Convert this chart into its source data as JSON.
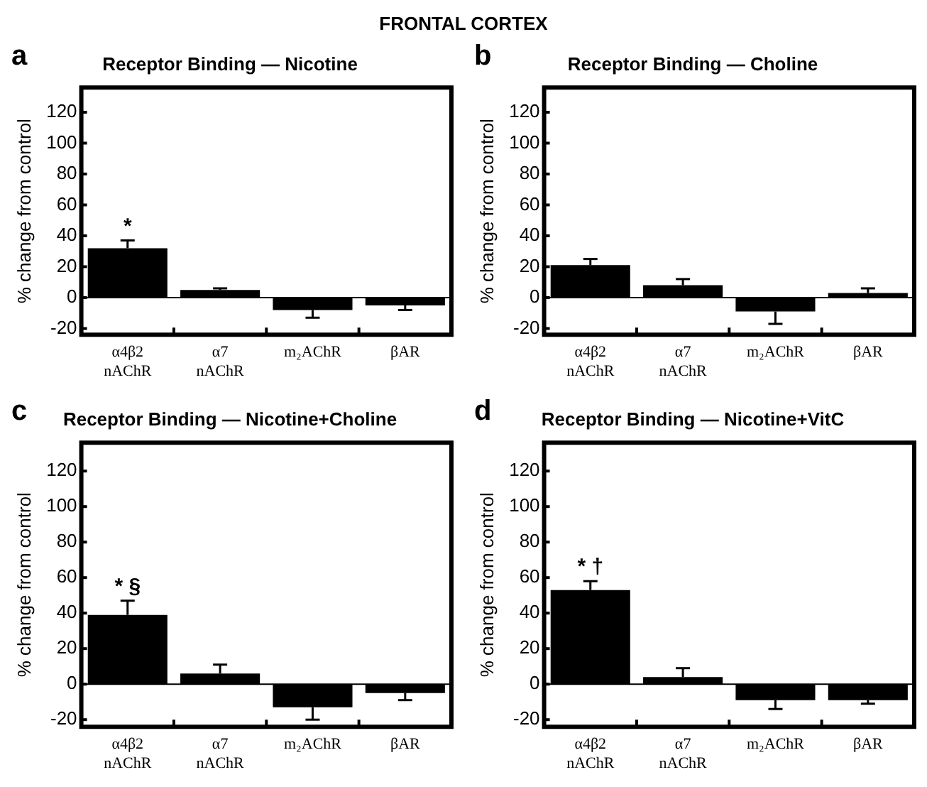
{
  "chart_data": [
    {
      "type": "bar",
      "title": "Receptor Binding — Nicotine",
      "ylabel": "% change from control",
      "categories": [
        "α4β2\nnAChR",
        "α7\nnAChR",
        "m₂AChR",
        "βAR"
      ],
      "color": "#000000",
      "values": [
        32,
        5,
        -8,
        -5
      ],
      "errors": [
        [
          32,
          37
        ],
        [
          5,
          6
        ],
        [
          -13,
          -8
        ],
        [
          -8,
          -5
        ]
      ],
      "ylim": [
        -24,
        136
      ],
      "yticks": [
        -20,
        0,
        20,
        40,
        60,
        80,
        100,
        120
      ],
      "grid": false,
      "ref_lines": [
        {
          "axis": "y",
          "value": 0,
          "color": "#000000"
        }
      ],
      "annotations": [
        "FRONTAL CORTEX",
        "a",
        {
          "text": "*",
          "x": "α4β2\nnAChR",
          "y": 37
        }
      ]
    },
    {
      "type": "bar",
      "title": "Receptor Binding — Choline",
      "ylabel": "% change from control",
      "categories": [
        "α4β2\nnAChR",
        "α7\nnAChR",
        "m₂AChR",
        "βAR"
      ],
      "color": "#000000",
      "values": [
        21,
        8,
        -9,
        3
      ],
      "errors": [
        [
          21,
          25
        ],
        [
          8,
          12
        ],
        [
          -17,
          -9
        ],
        [
          3,
          6
        ]
      ],
      "ylim": [
        -24,
        136
      ],
      "yticks": [
        -20,
        0,
        20,
        40,
        60,
        80,
        100,
        120
      ],
      "grid": false,
      "ref_lines": [
        {
          "axis": "y",
          "value": 0,
          "color": "#000000"
        }
      ],
      "annotations": [
        "b"
      ]
    },
    {
      "type": "bar",
      "title": "Receptor Binding — Nicotine+Choline",
      "ylabel": "% change from control",
      "categories": [
        "α4β2\nnAChR",
        "α7\nnAChR",
        "m₂AChR",
        "βAR"
      ],
      "color": "#000000",
      "values": [
        39,
        6,
        -13,
        -5
      ],
      "errors": [
        [
          39,
          47
        ],
        [
          6,
          11
        ],
        [
          -20,
          -13
        ],
        [
          -9,
          -5
        ]
      ],
      "ylim": [
        -24,
        136
      ],
      "yticks": [
        -20,
        0,
        20,
        40,
        60,
        80,
        100,
        120
      ],
      "grid": false,
      "ref_lines": [
        {
          "axis": "y",
          "value": 0,
          "color": "#000000"
        }
      ],
      "annotations": [
        "c",
        {
          "text": "* §",
          "x": "α4β2\nnAChR",
          "y": 47
        }
      ]
    },
    {
      "type": "bar",
      "title": "Receptor Binding — Nicotine+VitC",
      "ylabel": "% change from control",
      "categories": [
        "α4β2\nnAChR",
        "α7\nnAChR",
        "m₂AChR",
        "βAR"
      ],
      "color": "#000000",
      "values": [
        53,
        4,
        -9,
        -9
      ],
      "errors": [
        [
          53,
          58
        ],
        [
          4,
          9
        ],
        [
          -14,
          -9
        ],
        [
          -11,
          -9
        ]
      ],
      "ylim": [
        -24,
        136
      ],
      "yticks": [
        -20,
        0,
        20,
        40,
        60,
        80,
        100,
        120
      ],
      "grid": false,
      "ref_lines": [
        {
          "axis": "y",
          "value": 0,
          "color": "#000000"
        }
      ],
      "annotations": [
        "d",
        {
          "text": "* †",
          "x": "α4β2\nnAChR",
          "y": 58
        }
      ]
    }
  ]
}
